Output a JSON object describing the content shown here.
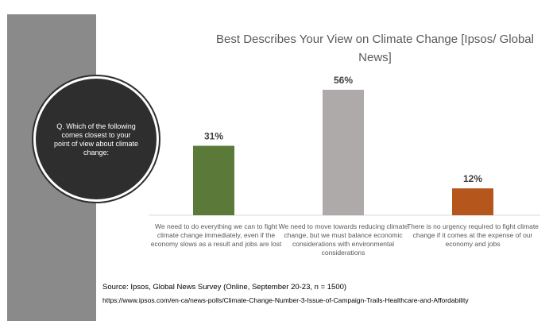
{
  "question": "Q. Which of the following comes closest to your point of view about climate change:",
  "source": "Source:  Ipsos, Global News Survey (Online, September 20-23, n = 1500)",
  "source_url": "https://www.ipsos.com/en-ca/news-polls/Climate-Change-Number-3-Issue-of-Campaign-Trails-Healthcare-and-Affordability",
  "chart_data": {
    "type": "bar",
    "title": "Best Describes Your View on Climate Change [Ipsos/ Global News]",
    "categories": [
      "We need to do everything we can to fight climate change immediately, even if the economy slows as a result and jobs are lost",
      "We need to move towards reducing climate change, but we must balance economic considerations with environmental considerations",
      "There is no urgency required to fight climate change if it comes at the expense of our economy and jobs"
    ],
    "values": [
      31,
      56,
      12
    ],
    "value_labels": [
      "31%",
      "56%",
      "12%"
    ],
    "colors": [
      "#5b7a3a",
      "#aeaaaa",
      "#b5561d"
    ],
    "ylim": [
      0,
      56
    ],
    "grid": false
  }
}
